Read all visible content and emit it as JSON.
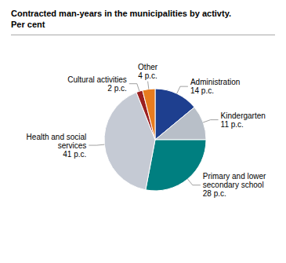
{
  "chart_data": {
    "type": "pie",
    "title": "Contracted man-years in the municipalities by activty.\nPer cent",
    "categories": [
      "Administration",
      "Kindergarten",
      "Primary and lower\nsecondary school",
      "Health and social\nservices",
      "Cultural activities",
      "Other"
    ],
    "values": [
      14,
      11,
      28,
      41,
      2,
      4
    ],
    "value_labels": [
      "14 p.c.",
      "11 p.c.",
      "28 p.c.",
      "41 p.c.",
      "2 p.c.",
      "4 p.c."
    ],
    "colors": [
      "#1e3f8f",
      "#b8bfc8",
      "#007f80",
      "#c5cad4",
      "#9b2020",
      "#e87c1e"
    ]
  }
}
